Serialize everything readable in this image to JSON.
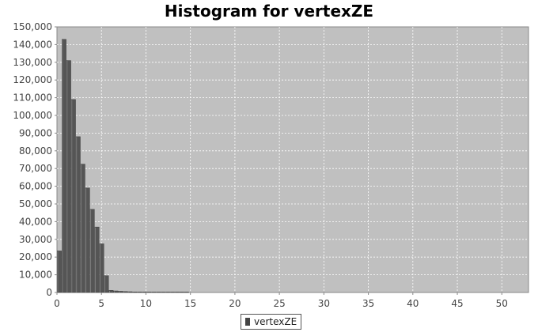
{
  "chart_data": {
    "type": "bar",
    "title": "Histogram for vertexZE",
    "xlabel": "",
    "ylabel": "",
    "xlim": [
      0,
      53
    ],
    "ylim": [
      0,
      150000
    ],
    "x_ticks": [
      "0",
      "5",
      "10",
      "15",
      "20",
      "25",
      "30",
      "35",
      "40",
      "45",
      "50"
    ],
    "y_ticks": [
      "0",
      "10,000",
      "20,000",
      "30,000",
      "40,000",
      "50,000",
      "60,000",
      "70,000",
      "80,000",
      "90,000",
      "100,000",
      "110,000",
      "120,000",
      "130,000",
      "140,000",
      "150,000"
    ],
    "bin_width": 0.53,
    "series": [
      {
        "name": "vertexZE",
        "bins": [
          {
            "x": 0.0,
            "value": 23500
          },
          {
            "x": 0.53,
            "value": 143000
          },
          {
            "x": 1.06,
            "value": 131000
          },
          {
            "x": 1.59,
            "value": 109000
          },
          {
            "x": 2.12,
            "value": 88000
          },
          {
            "x": 2.65,
            "value": 72500
          },
          {
            "x": 3.18,
            "value": 59000
          },
          {
            "x": 3.71,
            "value": 47000
          },
          {
            "x": 4.24,
            "value": 37000
          },
          {
            "x": 4.77,
            "value": 27500
          },
          {
            "x": 5.3,
            "value": 9500
          },
          {
            "x": 5.83,
            "value": 1200
          },
          {
            "x": 6.36,
            "value": 900
          },
          {
            "x": 6.89,
            "value": 700
          },
          {
            "x": 7.42,
            "value": 550
          },
          {
            "x": 7.95,
            "value": 450
          },
          {
            "x": 8.48,
            "value": 350
          },
          {
            "x": 9.01,
            "value": 300
          },
          {
            "x": 9.54,
            "value": 250
          },
          {
            "x": 10.07,
            "value": 200
          },
          {
            "x": 10.6,
            "value": 170
          },
          {
            "x": 11.13,
            "value": 140
          },
          {
            "x": 11.66,
            "value": 120
          },
          {
            "x": 12.19,
            "value": 100
          },
          {
            "x": 12.72,
            "value": 90
          },
          {
            "x": 13.25,
            "value": 80
          },
          {
            "x": 13.78,
            "value": 70
          },
          {
            "x": 14.31,
            "value": 60
          }
        ]
      }
    ],
    "grid": true,
    "legend_position": "bottom-center",
    "colors": {
      "bar": "#555555",
      "background": "#c0c0c0",
      "grid": "#ffffff"
    }
  }
}
